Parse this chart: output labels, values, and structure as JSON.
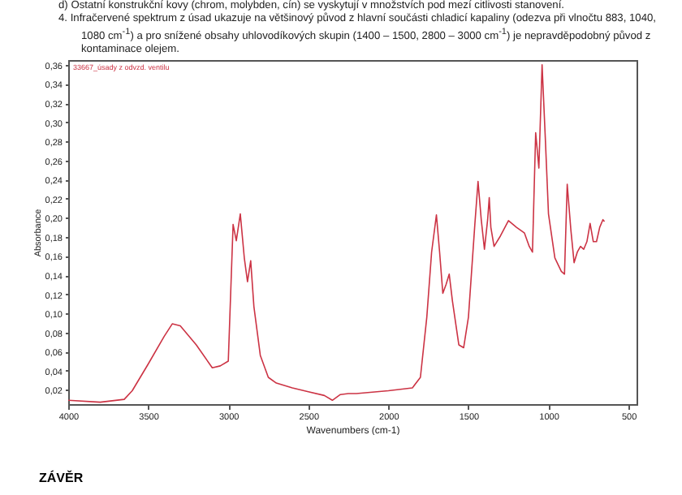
{
  "chart_data": {
    "type": "line",
    "xlabel": "Wavenumbers (cm-1)",
    "ylabel": "Absorbance",
    "annotations": [
      "d)   Ostatní konstrukční kovy (chrom, molybden, cín) se vyskytují v množstvích pod mezí citlivosti stanovení.",
      "4.   Infračervené spektrum z úsad ukazuje na většinový původ z hlavní součásti chladicí kapaliny (odezva při vlnočtu 883, 1040, 1080 cm$^{-1}$) a pro snížené obsahy uhlovodíkových skupin (1400 – 1500, 2800 – 3000 cm$^{-1}$) je nepravděpodobný původ z kontaminace olejem.",
      "ZÁVĚR"
    ],
    "x": [
      4000,
      3800,
      3650,
      3600,
      3500,
      3400,
      3350,
      3300,
      3200,
      3100,
      3050,
      3000,
      2970,
      2950,
      2925,
      2900,
      2880,
      2860,
      2840,
      2800,
      2750,
      2700,
      2600,
      2500,
      2400,
      2350,
      2300,
      2250,
      2200,
      2000,
      1850,
      1800,
      1760,
      1730,
      1700,
      1680,
      1660,
      1640,
      1620,
      1600,
      1560,
      1530,
      1500,
      1460,
      1440,
      1420,
      1400,
      1380,
      1370,
      1360,
      1340,
      1300,
      1250,
      1200,
      1150,
      1120,
      1100,
      1080,
      1060,
      1040,
      1020,
      1000,
      960,
      920,
      900,
      883,
      860,
      840,
      820,
      800,
      780,
      760,
      740,
      720,
      700,
      680,
      660,
      650
    ],
    "series": [
      {
        "name": "33667_úsady z odvzd. ventilu",
        "color": "#cc3344",
        "values": [
          0.009,
          0.007,
          0.01,
          0.019,
          0.047,
          0.076,
          0.089,
          0.087,
          0.067,
          0.043,
          0.045,
          0.05,
          0.193,
          0.176,
          0.204,
          0.158,
          0.133,
          0.155,
          0.107,
          0.056,
          0.033,
          0.027,
          0.022,
          0.018,
          0.014,
          0.009,
          0.015,
          0.016,
          0.016,
          0.019,
          0.022,
          0.033,
          0.096,
          0.164,
          0.203,
          0.164,
          0.121,
          0.13,
          0.141,
          0.113,
          0.067,
          0.064,
          0.096,
          0.193,
          0.238,
          0.198,
          0.167,
          0.198,
          0.221,
          0.19,
          0.17,
          0.181,
          0.197,
          0.19,
          0.184,
          0.17,
          0.164,
          0.289,
          0.252,
          0.36,
          0.284,
          0.204,
          0.158,
          0.144,
          0.141,
          0.235,
          0.187,
          0.153,
          0.164,
          0.17,
          0.167,
          0.175,
          0.194,
          0.175,
          0.175,
          0.19,
          0.198,
          0.196
        ]
      }
    ],
    "xlim": [
      4000,
      450
    ],
    "xticks": [
      4000,
      3500,
      3000,
      2500,
      2000,
      1500,
      1000,
      500
    ],
    "ylim": [
      0.005,
      0.365
    ],
    "yticks": [
      {
        "value": 0.02,
        "label": "0,02"
      },
      {
        "value": 0.04,
        "label": "0,04"
      },
      {
        "value": 0.06,
        "label": "0,06"
      },
      {
        "value": 0.08,
        "label": "0,08"
      },
      {
        "value": 0.1,
        "label": "0,10"
      },
      {
        "value": 0.12,
        "label": "0,12"
      },
      {
        "value": 0.14,
        "label": "0,14"
      },
      {
        "value": 0.16,
        "label": "0,16"
      },
      {
        "value": 0.18,
        "label": "0,18"
      },
      {
        "value": 0.2,
        "label": "0,20"
      },
      {
        "value": 0.22,
        "label": "0,22"
      },
      {
        "value": 0.24,
        "label": "0,24"
      },
      {
        "value": 0.26,
        "label": "0,26"
      },
      {
        "value": 0.28,
        "label": "0,28"
      },
      {
        "value": 0.3,
        "label": "0,30"
      },
      {
        "value": 0.32,
        "label": "0,32"
      },
      {
        "value": 0.34,
        "label": "0,34"
      },
      {
        "value": 0.36,
        "label": "0,36"
      }
    ],
    "legend": "top left",
    "marker": "none",
    "line_style": "solid"
  }
}
